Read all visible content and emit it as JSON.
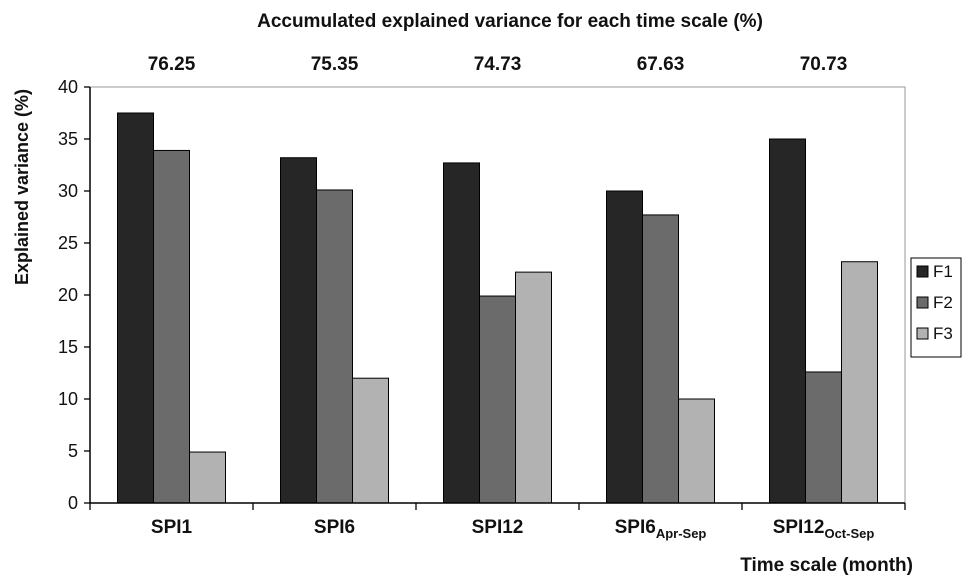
{
  "chart_data": {
    "type": "bar",
    "title": "Accumulated explained variance for each time scale (%)",
    "accumulated_values": [
      "76.25",
      "75.35",
      "74.73",
      "67.63",
      "70.73"
    ],
    "categories": [
      {
        "main": "SPI1",
        "sub": ""
      },
      {
        "main": "SPI6",
        "sub": ""
      },
      {
        "main": "SPI12",
        "sub": ""
      },
      {
        "main": "SPI6",
        "sub": "Apr-Sep"
      },
      {
        "main": "SPI12",
        "sub": "Oct-Sep"
      }
    ],
    "series": [
      {
        "name": "F1",
        "color": "#262626",
        "values": [
          37.5,
          33.2,
          32.7,
          30.0,
          35.0
        ]
      },
      {
        "name": "F2",
        "color": "#6b6b6b",
        "values": [
          33.9,
          30.1,
          19.9,
          27.7,
          12.6
        ]
      },
      {
        "name": "F3",
        "color": "#b2b2b2",
        "values": [
          4.9,
          12.0,
          22.2,
          10.0,
          23.2
        ]
      }
    ],
    "ylabel": "Explained  variance (%)",
    "xlabel": "Time scale (month)",
    "ylim": [
      0,
      40
    ],
    "yticks": [
      0,
      5,
      10,
      15,
      20,
      25,
      30,
      35,
      40
    ],
    "grid": false,
    "legend": "right"
  }
}
